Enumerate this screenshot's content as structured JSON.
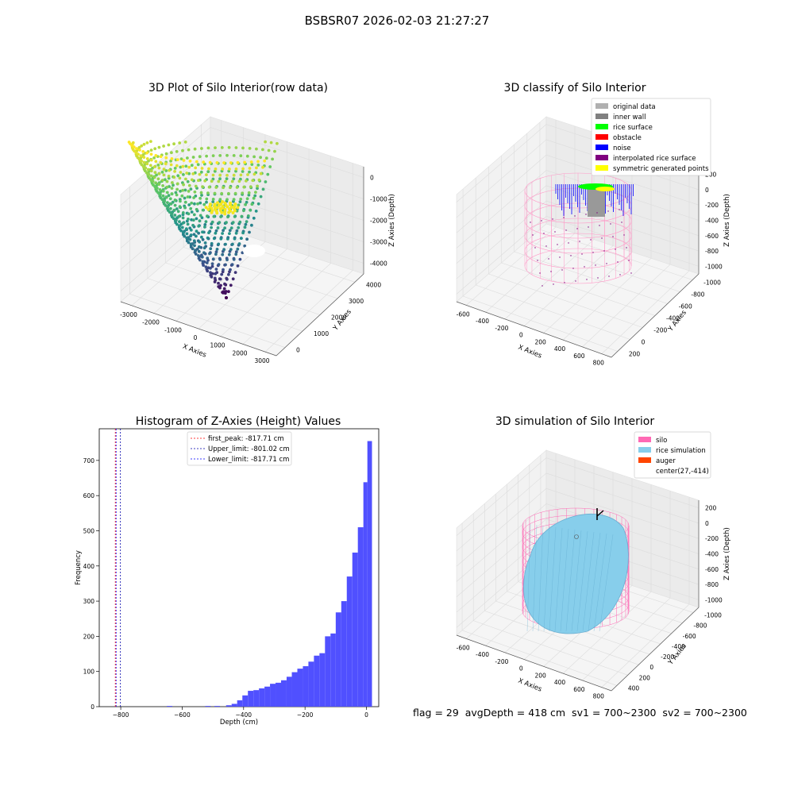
{
  "suptitle": "BSBSR07 2026-02-03 21:27:27",
  "footer": "flag = 29  avgDepth = 418 cm  sv1 = 700~2300  sv2 = 700~2300",
  "chart_data": [
    {
      "type": "scatter3d",
      "title": "3D Plot of Silo Interior(row data)",
      "xlabel": "X Axies",
      "ylabel": "Y Axies",
      "zlabel": "Z Axies (Depth)",
      "x_ticks": [
        "-3000",
        "-2000",
        "-1000",
        "0",
        "1000",
        "2000",
        "3000"
      ],
      "y_ticks": [
        "0",
        "1000",
        "2000",
        "3000",
        "4000"
      ],
      "z_ticks": [
        "0",
        "-1000",
        "-2000",
        "-3000",
        "-4000"
      ],
      "colormap": "viridis"
    },
    {
      "type": "scatter3d",
      "title": "3D classify of Silo Interior",
      "xlabel": "X Axies",
      "ylabel": "Y Axies",
      "zlabel": "Z Axies (Depth)",
      "x_ticks": [
        "-600",
        "-400",
        "-200",
        "0",
        "200",
        "400",
        "600",
        "800"
      ],
      "y_ticks": [
        "200",
        "0",
        "-200",
        "-400",
        "-600",
        "-800",
        "-1000"
      ],
      "z_ticks": [
        "200",
        "0",
        "-200",
        "-400",
        "-600",
        "-800",
        "-1000"
      ],
      "legend": [
        {
          "label": "original data",
          "color": "#b0b0b0"
        },
        {
          "label": "inner wall",
          "color": "#808080"
        },
        {
          "label": "rice surface",
          "color": "#00ff00"
        },
        {
          "label": "obstacle",
          "color": "#ff0000"
        },
        {
          "label": "noise",
          "color": "#0000ff"
        },
        {
          "label": "interpolated rice surface",
          "color": "#800080"
        },
        {
          "label": "symmetric generated points",
          "color": "#ffff00"
        }
      ],
      "legend_position": "top-right"
    },
    {
      "type": "histogram",
      "title": "Histogram of Z-Axies (Height) Values",
      "xlabel": "Depth (cm)",
      "ylabel": "Frequency",
      "xlim": [
        -870,
        40
      ],
      "ylim": [
        0,
        790
      ],
      "x_ticks": [
        -800,
        -600,
        -400,
        -200,
        0
      ],
      "y_ticks": [
        0,
        100,
        200,
        300,
        400,
        500,
        600,
        700
      ],
      "bar_color": "#5050ff",
      "bins": [
        {
          "x0": -650,
          "x1": -632,
          "count": 2
        },
        {
          "x0": -525,
          "x1": -507,
          "count": 2
        },
        {
          "x0": -495,
          "x1": -477,
          "count": 2
        },
        {
          "x0": -457,
          "x1": -439,
          "count": 4
        },
        {
          "x0": -439,
          "x1": -421,
          "count": 8
        },
        {
          "x0": -421,
          "x1": -404,
          "count": 18
        },
        {
          "x0": -404,
          "x1": -386,
          "count": 32
        },
        {
          "x0": -386,
          "x1": -368,
          "count": 45
        },
        {
          "x0": -368,
          "x1": -350,
          "count": 47
        },
        {
          "x0": -350,
          "x1": -332,
          "count": 52
        },
        {
          "x0": -332,
          "x1": -314,
          "count": 57
        },
        {
          "x0": -314,
          "x1": -296,
          "count": 65
        },
        {
          "x0": -296,
          "x1": -278,
          "count": 68
        },
        {
          "x0": -278,
          "x1": -260,
          "count": 75
        },
        {
          "x0": -260,
          "x1": -243,
          "count": 85
        },
        {
          "x0": -243,
          "x1": -225,
          "count": 98
        },
        {
          "x0": -225,
          "x1": -207,
          "count": 108
        },
        {
          "x0": -207,
          "x1": -189,
          "count": 115
        },
        {
          "x0": -189,
          "x1": -171,
          "count": 128
        },
        {
          "x0": -171,
          "x1": -153,
          "count": 145
        },
        {
          "x0": -153,
          "x1": -135,
          "count": 152
        },
        {
          "x0": -135,
          "x1": -117,
          "count": 200
        },
        {
          "x0": -117,
          "x1": -100,
          "count": 208
        },
        {
          "x0": -100,
          "x1": -82,
          "count": 268
        },
        {
          "x0": -82,
          "x1": -64,
          "count": 300
        },
        {
          "x0": -64,
          "x1": -46,
          "count": 370
        },
        {
          "x0": -46,
          "x1": -28,
          "count": 438
        },
        {
          "x0": -28,
          "x1": -10,
          "count": 510
        },
        {
          "x0": -10,
          "x1": 3,
          "count": 638
        },
        {
          "x0": 3,
          "x1": 18,
          "count": 755
        }
      ],
      "vlines": [
        {
          "label": "first_peak: -817.71 cm",
          "x": -817.71,
          "color": "#ff0000"
        },
        {
          "label": "Upper_limit: -801.02 cm",
          "x": -801.02,
          "color": "#0000aa"
        },
        {
          "label": "Lower_limit: -817.71 cm",
          "x": -817.71,
          "color": "#0000ff"
        }
      ],
      "legend_position": "top-center"
    },
    {
      "type": "surface3d",
      "title": "3D simulation of Silo Interior",
      "xlabel": "X Axies",
      "ylabel": "Y Axies",
      "zlabel": "Z Axies (Depth)",
      "x_ticks": [
        "-600",
        "-400",
        "-200",
        "0",
        "200",
        "400",
        "600",
        "800"
      ],
      "y_ticks": [
        "400",
        "200",
        "0",
        "-200",
        "-400",
        "-600",
        "-800",
        "-1000"
      ],
      "z_ticks": [
        "200",
        "0",
        "-200",
        "-400",
        "-600",
        "-800",
        "-1000"
      ],
      "legend": [
        {
          "label": "silo",
          "color": "#ff69b4"
        },
        {
          "label": "rice simulation",
          "color": "#87ceeb"
        },
        {
          "label": "auger",
          "color": "#ff4500"
        },
        {
          "label": "center(27,-414)",
          "color": ""
        }
      ],
      "legend_position": "top-right"
    }
  ]
}
